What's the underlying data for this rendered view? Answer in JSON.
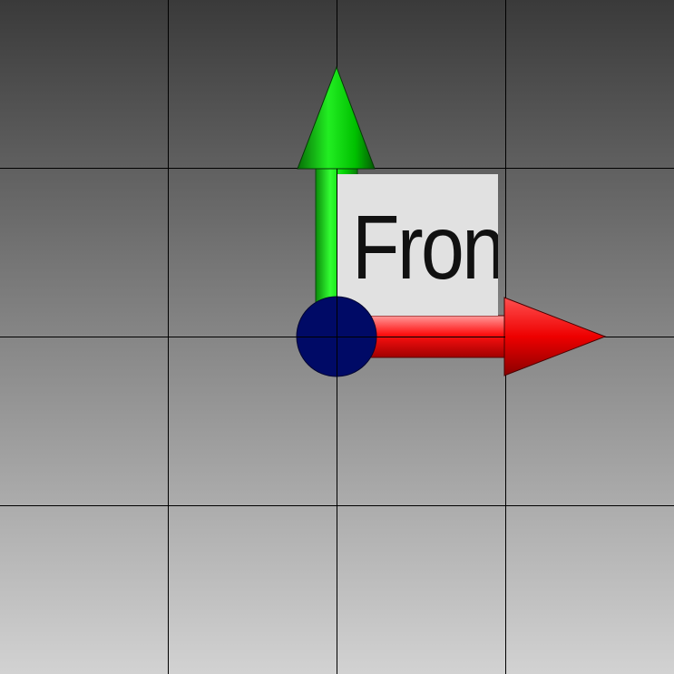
{
  "view": {
    "label": "Front",
    "background_top": "#3a3a3a",
    "background_bottom": "#d2d2d2",
    "grid_line_color": "#000000"
  },
  "axes": {
    "x_color": "#ff0000",
    "y_color": "#00dd00",
    "origin_color": "#000a66"
  },
  "icons": {
    "x_axis": "x-axis-arrow-icon",
    "y_axis": "y-axis-arrow-icon",
    "origin": "origin-point-icon"
  }
}
